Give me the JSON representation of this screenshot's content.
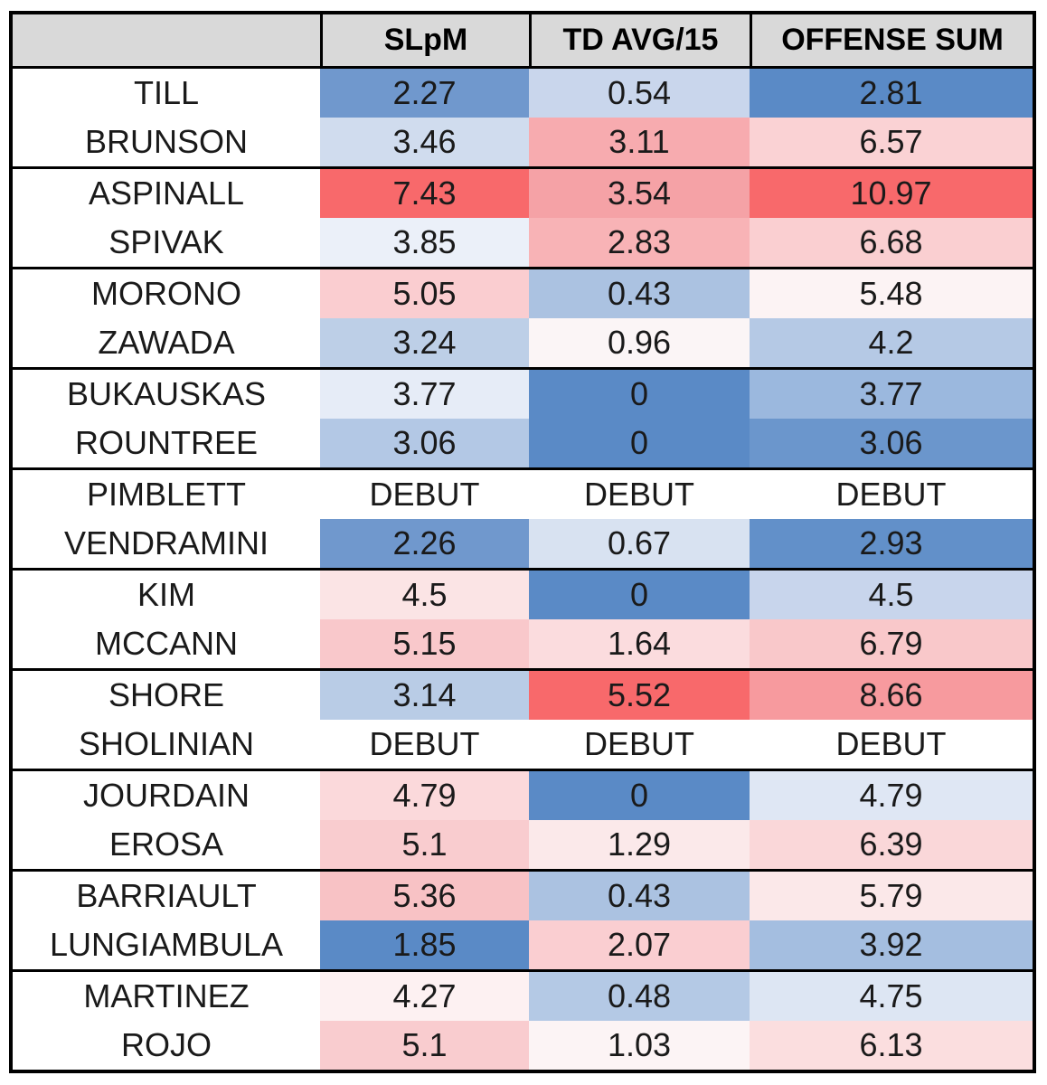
{
  "colors": {
    "page_bg": "#ffffff",
    "header_bg": "#d9d9d9",
    "border": "#000000",
    "text": "#1a1a1a",
    "name_cell_bg": "#ffffff",
    "debut_cell_bg": "#ffffff",
    "scale_min_blue": "#5a8ac6",
    "scale_mid_white": "#fcfcff",
    "scale_max_red": "#f8696b"
  },
  "chart_data": {
    "type": "table",
    "columns": [
      "",
      "SLpM",
      "TD AVG/15",
      "OFFENSE SUM"
    ],
    "legend_position": "none",
    "notes": "Rows are paired into matchup groups separated by thick black lines; cells use a blue-white-red diverging heatmap per column (blue = low, red = high); DEBUT cells are white.",
    "groups": [
      {
        "rows": [
          {
            "name": "TILL",
            "cells": [
              {
                "v": "2.27",
                "bg": "#7098cd"
              },
              {
                "v": "0.54",
                "bg": "#c9d6ec"
              },
              {
                "v": "2.81",
                "bg": "#5a8ac6"
              }
            ]
          },
          {
            "name": "BRUNSON",
            "cells": [
              {
                "v": "3.46",
                "bg": "#d0dcee"
              },
              {
                "v": "3.11",
                "bg": "#f7abaf"
              },
              {
                "v": "6.57",
                "bg": "#fad2d4"
              }
            ]
          }
        ]
      },
      {
        "rows": [
          {
            "name": "ASPINALL",
            "cells": [
              {
                "v": "7.43",
                "bg": "#f8696b"
              },
              {
                "v": "3.54",
                "bg": "#f5a2a6"
              },
              {
                "v": "10.97",
                "bg": "#f8696b"
              }
            ]
          },
          {
            "name": "SPIVAK",
            "cells": [
              {
                "v": "3.85",
                "bg": "#ebf0f9"
              },
              {
                "v": "2.83",
                "bg": "#f8b3b6"
              },
              {
                "v": "6.68",
                "bg": "#facfd1"
              }
            ]
          }
        ]
      },
      {
        "rows": [
          {
            "name": "MORONO",
            "cells": [
              {
                "v": "5.05",
                "bg": "#facdd0"
              },
              {
                "v": "0.43",
                "bg": "#abc2e1"
              },
              {
                "v": "5.48",
                "bg": "#fcf3f4"
              }
            ]
          },
          {
            "name": "ZAWADA",
            "cells": [
              {
                "v": "3.24",
                "bg": "#bdcfe7"
              },
              {
                "v": "0.96",
                "bg": "#fbf5f6"
              },
              {
                "v": "4.2",
                "bg": "#b5c9e5"
              }
            ]
          }
        ]
      },
      {
        "rows": [
          {
            "name": "BUKAUSKAS",
            "cells": [
              {
                "v": "3.77",
                "bg": "#e6ecf7"
              },
              {
                "v": "0",
                "bg": "#5a8ac6"
              },
              {
                "v": "3.77",
                "bg": "#9bb8de"
              }
            ]
          },
          {
            "name": "ROUNTREE",
            "cells": [
              {
                "v": "3.06",
                "bg": "#b3c8e5"
              },
              {
                "v": "0",
                "bg": "#5a8ac6"
              },
              {
                "v": "3.06",
                "bg": "#6b96cc"
              }
            ]
          }
        ]
      },
      {
        "rows": [
          {
            "name": "PIMBLETT",
            "cells": [
              {
                "v": "DEBUT",
                "bg": "#ffffff"
              },
              {
                "v": "DEBUT",
                "bg": "#ffffff"
              },
              {
                "v": "DEBUT",
                "bg": "#ffffff"
              }
            ]
          },
          {
            "name": "VENDRAMINI",
            "cells": [
              {
                "v": "2.26",
                "bg": "#7098cd"
              },
              {
                "v": "0.67",
                "bg": "#d8e2f1"
              },
              {
                "v": "2.93",
                "bg": "#6290c9"
              }
            ]
          }
        ]
      },
      {
        "rows": [
          {
            "name": "KIM",
            "cells": [
              {
                "v": "4.5",
                "bg": "#fbe4e5"
              },
              {
                "v": "0",
                "bg": "#5a8ac6"
              },
              {
                "v": "4.5",
                "bg": "#c8d5ec"
              }
            ]
          },
          {
            "name": "MCCANN",
            "cells": [
              {
                "v": "5.15",
                "bg": "#f9c8cb"
              },
              {
                "v": "1.64",
                "bg": "#fbdcde"
              },
              {
                "v": "6.79",
                "bg": "#f9c8ca"
              }
            ]
          }
        ]
      },
      {
        "rows": [
          {
            "name": "SHORE",
            "cells": [
              {
                "v": "3.14",
                "bg": "#b9cce6"
              },
              {
                "v": "5.52",
                "bg": "#f8696b"
              },
              {
                "v": "8.66",
                "bg": "#f79a9e"
              }
            ]
          },
          {
            "name": "SHOLINIAN",
            "cells": [
              {
                "v": "DEBUT",
                "bg": "#ffffff"
              },
              {
                "v": "DEBUT",
                "bg": "#ffffff"
              },
              {
                "v": "DEBUT",
                "bg": "#ffffff"
              }
            ]
          }
        ]
      },
      {
        "rows": [
          {
            "name": "JOURDAIN",
            "cells": [
              {
                "v": "4.79",
                "bg": "#fbd9db"
              },
              {
                "v": "0",
                "bg": "#5a8ac6"
              },
              {
                "v": "4.79",
                "bg": "#dfe7f4"
              }
            ]
          },
          {
            "name": "EROSA",
            "cells": [
              {
                "v": "5.1",
                "bg": "#f9cccf"
              },
              {
                "v": "1.29",
                "bg": "#fbe9ea"
              },
              {
                "v": "6.39",
                "bg": "#fad7d9"
              }
            ]
          }
        ]
      },
      {
        "rows": [
          {
            "name": "BARRIAULT",
            "cells": [
              {
                "v": "5.36",
                "bg": "#f8c2c5"
              },
              {
                "v": "0.43",
                "bg": "#abc2e1"
              },
              {
                "v": "5.79",
                "bg": "#fbe8e9"
              }
            ]
          },
          {
            "name": "LUNGIAMBULA",
            "cells": [
              {
                "v": "1.85",
                "bg": "#5a8ac6"
              },
              {
                "v": "2.07",
                "bg": "#faced1"
              },
              {
                "v": "3.92",
                "bg": "#a4bee0"
              }
            ]
          }
        ]
      },
      {
        "rows": [
          {
            "name": "MARTINEZ",
            "cells": [
              {
                "v": "4.27",
                "bg": "#fdf1f2"
              },
              {
                "v": "0.48",
                "bg": "#b4c9e5"
              },
              {
                "v": "4.75",
                "bg": "#dde6f3"
              }
            ]
          },
          {
            "name": "ROJO",
            "cells": [
              {
                "v": "5.1",
                "bg": "#f9cccf"
              },
              {
                "v": "1.03",
                "bg": "#fcf4f5"
              },
              {
                "v": "6.13",
                "bg": "#fbdedf"
              }
            ]
          }
        ]
      }
    ]
  }
}
